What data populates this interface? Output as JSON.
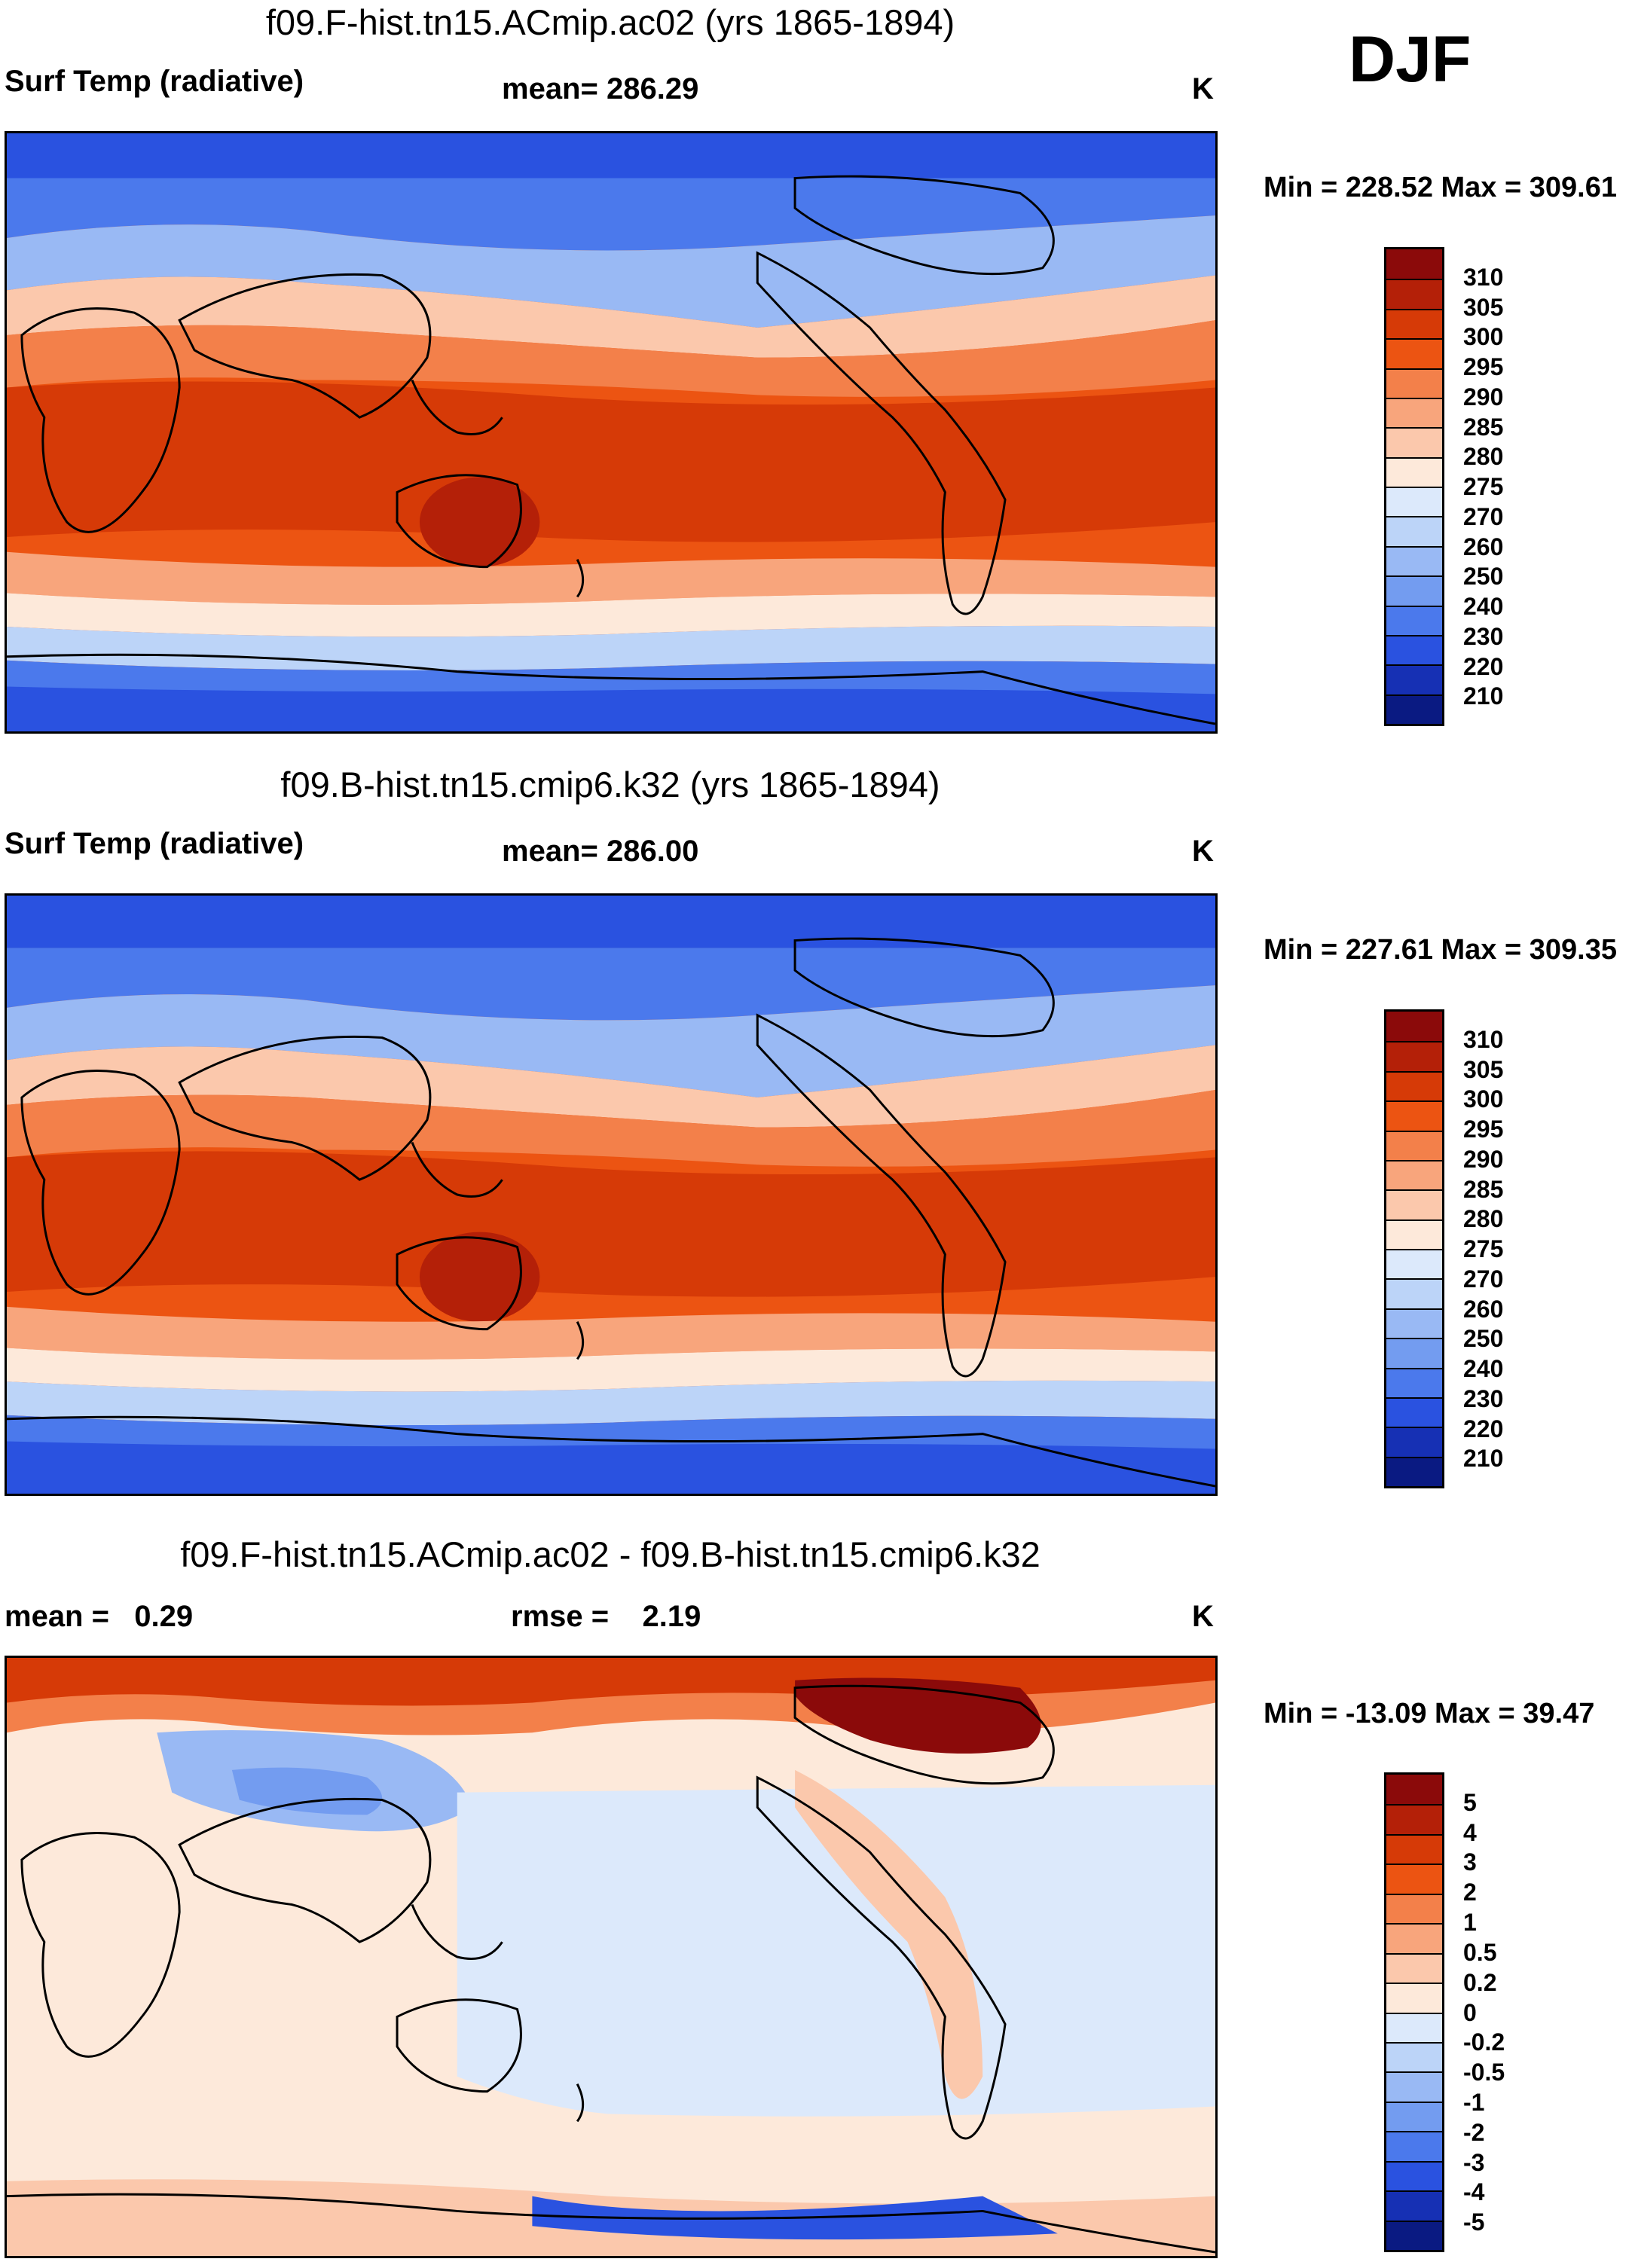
{
  "season": "DJF",
  "panels": [
    {
      "title": "f09.F-hist.tn15.ACmip.ac02 (yrs 1865-1894)",
      "variable": "Surf Temp (radiative)",
      "stat": "mean= 286.29",
      "units": "K",
      "minmax": "Min = 228.52 Max = 309.61",
      "colorbar": {
        "labels": [
          "310",
          "305",
          "300",
          "295",
          "290",
          "285",
          "280",
          "275",
          "270",
          "260",
          "250",
          "240",
          "230",
          "220",
          "210"
        ],
        "colors": [
          "#8b0a0a",
          "#b42008",
          "#d63a07",
          "#ec5412",
          "#f3804a",
          "#f8a57c",
          "#fbc8ac",
          "#fde9da",
          "#dce9fb",
          "#bcd4f8",
          "#99b9f4",
          "#739cf0",
          "#4b79ec",
          "#2a52e0",
          "#1630b4",
          "#0a1a82"
        ]
      }
    },
    {
      "title": "f09.B-hist.tn15.cmip6.k32 (yrs 1865-1894)",
      "variable": "Surf Temp (radiative)",
      "stat": "mean= 286.00",
      "units": "K",
      "minmax": "Min = 227.61 Max = 309.35",
      "colorbar": {
        "labels": [
          "310",
          "305",
          "300",
          "295",
          "290",
          "285",
          "280",
          "275",
          "270",
          "260",
          "250",
          "240",
          "230",
          "220",
          "210"
        ],
        "colors": [
          "#8b0a0a",
          "#b42008",
          "#d63a07",
          "#ec5412",
          "#f3804a",
          "#f8a57c",
          "#fbc8ac",
          "#fde9da",
          "#dce9fb",
          "#bcd4f8",
          "#99b9f4",
          "#739cf0",
          "#4b79ec",
          "#2a52e0",
          "#1630b4",
          "#0a1a82"
        ]
      }
    },
    {
      "title": "f09.F-hist.tn15.ACmip.ac02 - f09.B-hist.tn15.cmip6.k32",
      "stat_left": "mean =   0.29",
      "stat_mid": "rmse =    2.19",
      "units": "K",
      "minmax": "Min = -13.09 Max =  39.47",
      "colorbar": {
        "labels": [
          "5",
          "4",
          "3",
          "2",
          "1",
          "0.5",
          "0.2",
          "0",
          "-0.2",
          "-0.5",
          "-1",
          "-2",
          "-3",
          "-4",
          "-5"
        ],
        "colors": [
          "#8b0a0a",
          "#b42008",
          "#d63a07",
          "#ec5412",
          "#f3804a",
          "#f8a57c",
          "#fbc8ac",
          "#fde9da",
          "#dce9fb",
          "#bcd4f8",
          "#99b9f4",
          "#739cf0",
          "#4b79ec",
          "#2a52e0",
          "#1630b4",
          "#0a1a82"
        ]
      }
    }
  ]
}
